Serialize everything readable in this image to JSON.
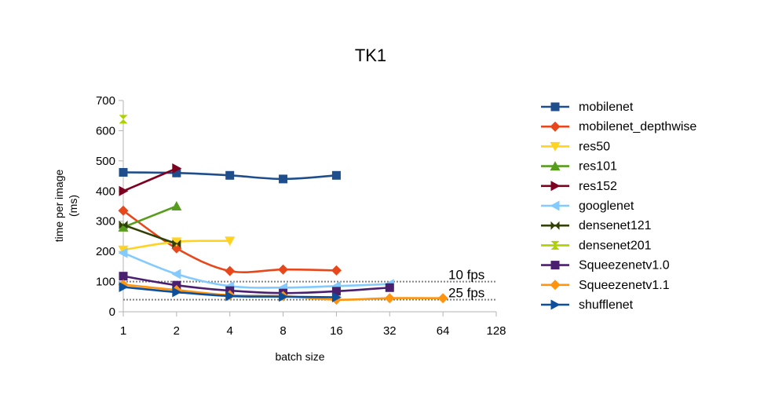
{
  "chart_data": {
    "type": "line",
    "title": "TK1",
    "xlabel": "batch size",
    "ylabel_lines": [
      "time per image",
      "(ms)"
    ],
    "x_scale": "log2",
    "x_ticks": [
      1,
      2,
      4,
      8,
      16,
      32,
      64,
      128
    ],
    "x_tick_labels": [
      "1",
      "2",
      "4",
      "8",
      "16",
      "32",
      "64",
      "128"
    ],
    "ylim": [
      0,
      700
    ],
    "y_ticks": [
      0,
      100,
      200,
      300,
      400,
      500,
      600,
      700
    ],
    "y_tick_labels": [
      "0",
      "100",
      "200",
      "300",
      "400",
      "500",
      "600",
      "700"
    ],
    "legend_position": "right",
    "reference_lines": [
      {
        "label": "10 fps",
        "value": 100
      },
      {
        "label": "25 fps",
        "value": 40
      }
    ],
    "series": [
      {
        "name": "mobilenet",
        "color": "#1f4e8c",
        "marker": "square",
        "x": [
          1,
          2,
          4,
          8,
          16
        ],
        "values": [
          462,
          460,
          452,
          440,
          452
        ]
      },
      {
        "name": "mobilenet_depthwise",
        "color": "#e8471c",
        "marker": "diamond",
        "x": [
          1,
          2,
          4,
          8,
          16
        ],
        "values": [
          335,
          210,
          135,
          140,
          137
        ]
      },
      {
        "name": "res50",
        "color": "#ffd320",
        "marker": "triangle-down",
        "x": [
          1,
          2,
          4
        ],
        "values": [
          205,
          232,
          235
        ]
      },
      {
        "name": "res101",
        "color": "#579d1c",
        "marker": "triangle-up",
        "x": [
          1,
          2
        ],
        "values": [
          280,
          350
        ]
      },
      {
        "name": "res152",
        "color": "#7e0021",
        "marker": "triangle-right",
        "x": [
          1,
          2
        ],
        "values": [
          400,
          475
        ]
      },
      {
        "name": "googlenet",
        "color": "#83caff",
        "marker": "triangle-left",
        "x": [
          1,
          2,
          4,
          8,
          16,
          32
        ],
        "values": [
          195,
          125,
          85,
          80,
          85,
          92
        ]
      },
      {
        "name": "densenet121",
        "color": "#314004",
        "marker": "bowtie",
        "x": [
          1,
          2
        ],
        "values": [
          288,
          225
        ]
      },
      {
        "name": "densenet201",
        "color": "#aecf00",
        "marker": "hourglass",
        "x": [
          1
        ],
        "values": [
          638
        ]
      },
      {
        "name": "Squeezenetv1.0",
        "color": "#4b1f6f",
        "marker": "square",
        "x": [
          1,
          2,
          4,
          8,
          16,
          32
        ],
        "values": [
          118,
          88,
          70,
          62,
          68,
          80
        ]
      },
      {
        "name": "Squeezenetv1.1",
        "color": "#ff950e",
        "marker": "diamond",
        "x": [
          1,
          2,
          4,
          8,
          16,
          32,
          64
        ],
        "values": [
          90,
          72,
          55,
          52,
          40,
          45,
          45
        ]
      },
      {
        "name": "shufflenet",
        "color": "#0e4f9c",
        "marker": "triangle-right",
        "x": [
          1,
          2,
          4,
          8,
          16
        ],
        "values": [
          82,
          65,
          52,
          50,
          48
        ]
      }
    ]
  }
}
